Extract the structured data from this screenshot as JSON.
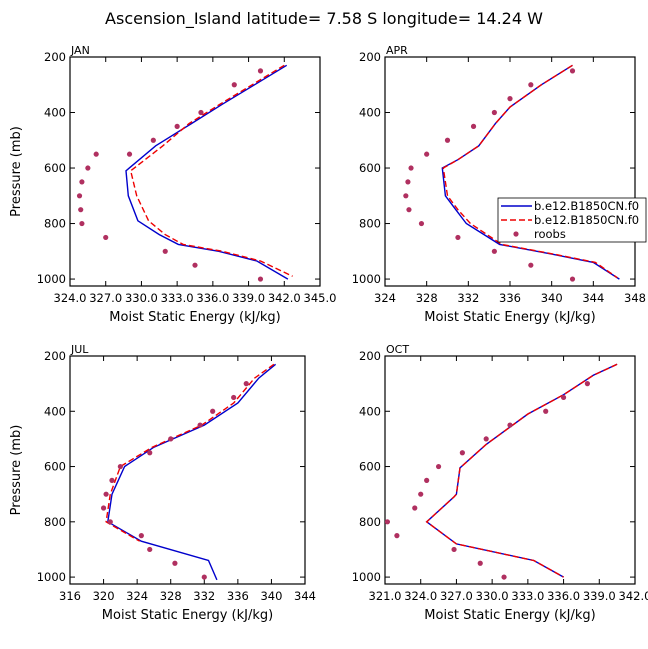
{
  "figure": {
    "title": "Ascension_Island   latitude= 7.58 S longitude= 14.24 W"
  },
  "legend": {
    "entries": [
      {
        "label": "b.e12.B1850CN.f0",
        "color": "#0000cc",
        "style": "solid"
      },
      {
        "label": "b.e12.B1850CN.f0",
        "color": "#ee0000",
        "style": "dashed"
      },
      {
        "label": "roobs",
        "color": "#b03060",
        "style": "marker"
      }
    ]
  },
  "chart_data": [
    {
      "type": "line",
      "panel": "JAN",
      "title": "JAN",
      "xlabel": "Moist Static Energy (kJ/kg)",
      "ylabel": "Pressure (mb)",
      "xlim": [
        324.0,
        345.0
      ],
      "ylim": [
        1025,
        200
      ],
      "xticks": [
        324.0,
        327.0,
        330.0,
        333.0,
        336.0,
        339.0,
        342.0,
        345.0
      ],
      "xtick_labels": [
        "324.0",
        "327.0",
        "330.0",
        "333.0",
        "336.0",
        "339.0",
        "342.0",
        "345.0"
      ],
      "yticks": [
        200,
        400,
        600,
        800,
        1000
      ],
      "ytick_labels": [
        "200",
        "400",
        "600",
        "800",
        "1000"
      ],
      "series": [
        {
          "name": "b.e12.B1850CN.f0 (solid)",
          "color": "#0000cc",
          "dash": "",
          "x": [
            342.2,
            339.5,
            336.8,
            334.2,
            331.2,
            328.7,
            328.9,
            329.7,
            331.5,
            333.1,
            336.5,
            339.7,
            342.3
          ],
          "y": [
            230,
            300,
            370,
            440,
            520,
            610,
            700,
            790,
            840,
            875,
            900,
            935,
            1000
          ]
        },
        {
          "name": "b.e12.B1850CN.f0 (dashed)",
          "color": "#ee0000",
          "dash": "6,3",
          "x": [
            342.0,
            339.3,
            336.6,
            334.0,
            331.8,
            329.1,
            329.6,
            330.6,
            332.0,
            333.5,
            336.8,
            340.0,
            342.7
          ],
          "y": [
            230,
            300,
            370,
            440,
            520,
            610,
            700,
            790,
            840,
            875,
            900,
            935,
            990
          ]
        },
        {
          "name": "roobs",
          "color": "#b03060",
          "markers": true,
          "x": [
            340.0,
            337.8,
            335.0,
            333.0,
            331.0,
            329.0,
            326.2,
            325.5,
            325.0,
            324.8,
            324.9,
            325.0,
            327.0,
            332.0,
            334.5,
            340.0
          ],
          "y": [
            250,
            300,
            400,
            450,
            500,
            550,
            550,
            600,
            650,
            700,
            750,
            800,
            850,
            900,
            950,
            1000
          ]
        }
      ]
    },
    {
      "type": "line",
      "panel": "APR",
      "title": "APR",
      "xlabel": "Moist Static Energy (kJ/kg)",
      "ylabel": "Pressure (mb)",
      "xlim": [
        324,
        348
      ],
      "ylim": [
        1025,
        200
      ],
      "xticks": [
        324,
        328,
        332,
        336,
        340,
        344,
        348
      ],
      "xtick_labels": [
        "324",
        "328",
        "332",
        "336",
        "340",
        "344",
        "348"
      ],
      "yticks": [
        200,
        400,
        600,
        800,
        1000
      ],
      "ytick_labels": [
        "200",
        "400",
        "600",
        "800",
        "1000"
      ],
      "series": [
        {
          "name": "b.e12.B1850CN.f0 (solid)",
          "color": "#0000cc",
          "dash": "",
          "x": [
            342.0,
            339.0,
            336.0,
            334.6,
            333.0,
            331.0,
            329.5,
            329.8,
            330.8,
            331.8,
            335.0,
            340.0,
            344.0,
            346.5
          ],
          "y": [
            230,
            300,
            380,
            440,
            520,
            570,
            600,
            700,
            750,
            800,
            875,
            910,
            940,
            1000
          ]
        },
        {
          "name": "b.e12.B1850CN.f0 (dashed)",
          "color": "#ee0000",
          "dash": "6,3",
          "x": [
            342.0,
            339.0,
            336.0,
            334.6,
            333.0,
            331.0,
            329.6,
            330.0,
            331.0,
            332.2,
            335.2,
            340.2,
            344.2,
            346.3
          ],
          "y": [
            230,
            300,
            380,
            440,
            520,
            570,
            600,
            700,
            750,
            800,
            875,
            910,
            940,
            995
          ]
        },
        {
          "name": "roobs",
          "color": "#b03060",
          "markers": true,
          "x": [
            342.0,
            338.0,
            336.0,
            334.5,
            332.5,
            330.0,
            328.0,
            326.5,
            326.2,
            326.0,
            326.3,
            327.5,
            331.0,
            334.5,
            338.0,
            342.0
          ],
          "y": [
            250,
            300,
            350,
            400,
            450,
            500,
            550,
            600,
            650,
            700,
            750,
            800,
            850,
            900,
            950,
            1000
          ]
        }
      ]
    },
    {
      "type": "line",
      "panel": "JUL",
      "title": "JUL",
      "xlabel": "Moist Static Energy (kJ/kg)",
      "ylabel": "Pressure (mb)",
      "xlim": [
        316,
        344
      ],
      "ylim": [
        1025,
        200
      ],
      "xticks": [
        316,
        320,
        324,
        328,
        332,
        336,
        340,
        344
      ],
      "xtick_labels": [
        "316",
        "320",
        "324",
        "328",
        "332",
        "336",
        "340",
        "344"
      ],
      "yticks": [
        200,
        400,
        600,
        800,
        1000
      ],
      "ytick_labels": [
        "200",
        "400",
        "600",
        "800",
        "1000"
      ],
      "series": [
        {
          "name": "b.e12.B1850CN.f0 (solid)",
          "color": "#0000cc",
          "dash": "",
          "x": [
            340.5,
            338.5,
            336.0,
            332.0,
            326.0,
            322.5,
            321.0,
            320.5,
            324.5,
            332.5,
            333.5
          ],
          "y": [
            230,
            280,
            370,
            450,
            530,
            600,
            700,
            800,
            870,
            940,
            1010
          ]
        },
        {
          "name": "b.e12.B1850CN.f0 (dashed)",
          "color": "#ee0000",
          "dash": "6,3",
          "x": [
            340.3,
            338.0,
            335.5,
            331.7,
            325.8,
            322.0,
            320.8,
            320.3,
            324.3
          ],
          "y": [
            230,
            280,
            370,
            450,
            530,
            600,
            700,
            800,
            870
          ]
        },
        {
          "name": "roobs",
          "color": "#b03060",
          "markers": true,
          "x": [
            337.0,
            335.5,
            333.0,
            331.5,
            328.0,
            325.5,
            322.0,
            321.0,
            320.3,
            320.0,
            320.8,
            324.5,
            325.5,
            328.5,
            332.0
          ],
          "y": [
            300,
            350,
            400,
            450,
            500,
            550,
            600,
            650,
            700,
            750,
            800,
            850,
            900,
            950,
            1000
          ]
        }
      ]
    },
    {
      "type": "line",
      "panel": "OCT",
      "title": "OCT",
      "xlabel": "Moist Static Energy (kJ/kg)",
      "ylabel": "Pressure (mb)",
      "xlim": [
        321.0,
        342.0
      ],
      "ylim": [
        1025,
        200
      ],
      "xticks": [
        321.0,
        324.0,
        327.0,
        330.0,
        333.0,
        336.0,
        339.0,
        342.0
      ],
      "xtick_labels": [
        "321.0",
        "324.0",
        "327.0",
        "330.0",
        "333.0",
        "336.0",
        "339.0",
        "342.0"
      ],
      "yticks": [
        200,
        400,
        600,
        800,
        1000
      ],
      "ytick_labels": [
        "200",
        "400",
        "600",
        "800",
        "1000"
      ],
      "series": [
        {
          "name": "b.e12.B1850CN.f0 (solid)",
          "color": "#0000cc",
          "dash": "",
          "x": [
            340.5,
            338.5,
            336.0,
            333.0,
            329.5,
            327.3,
            327.0,
            326.8,
            324.5,
            327.0,
            333.5,
            336.0
          ],
          "y": [
            230,
            270,
            340,
            410,
            520,
            605,
            700,
            710,
            800,
            880,
            940,
            1000
          ]
        },
        {
          "name": "b.e12.B1850CN.f0 (dashed)",
          "color": "#ee0000",
          "dash": "6,3",
          "x": [
            340.5,
            338.5,
            336.0,
            333.0,
            329.5,
            327.3,
            327.0,
            326.8,
            324.5,
            327.0,
            333.5,
            336.0
          ],
          "y": [
            230,
            270,
            340,
            410,
            520,
            605,
            700,
            710,
            800,
            880,
            940,
            1000
          ]
        },
        {
          "name": "roobs",
          "color": "#b03060",
          "markers": true,
          "x": [
            338.0,
            336.0,
            334.5,
            331.5,
            329.5,
            327.5,
            325.5,
            324.5,
            324.0,
            323.5,
            321.2,
            322.0,
            326.8,
            329.0,
            331.0
          ],
          "y": [
            300,
            350,
            400,
            450,
            500,
            550,
            600,
            650,
            700,
            750,
            800,
            850,
            900,
            950,
            1000
          ]
        }
      ]
    }
  ]
}
